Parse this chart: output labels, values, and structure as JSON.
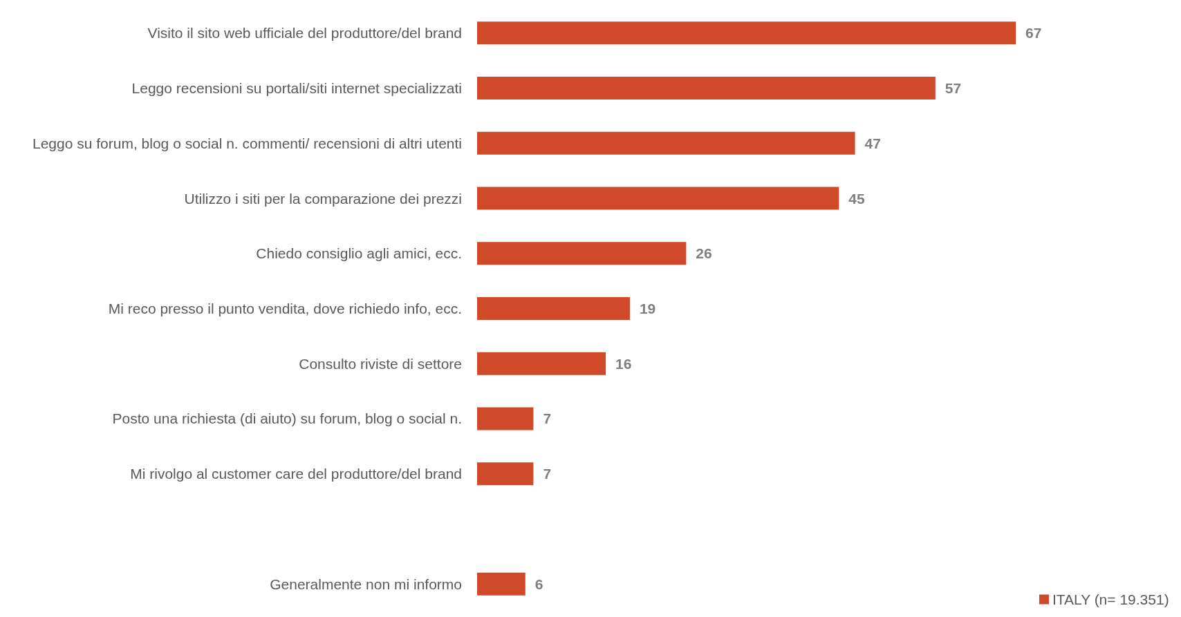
{
  "chart_data": {
    "type": "bar",
    "orientation": "horizontal",
    "categories": [
      "Visito il sito web ufficiale del produttore/del brand",
      "Leggo recensioni su portali/siti internet specializzati",
      "Leggo su forum, blog o social n. commenti/ recensioni di altri utenti",
      "Utilizzo i siti per la comparazione dei prezzi",
      "Chiedo consiglio agli amici, ecc.",
      "Mi reco presso il punto vendita, dove richiedo info, ecc.",
      "Consulto riviste di settore",
      "Posto una richiesta (di aiuto) su forum, blog o social n.",
      "Mi rivolgo al customer care del produttore/del brand",
      null,
      "Generalmente non mi informo"
    ],
    "series": [
      {
        "name": "ITALY (n= 19.351)",
        "color": "#d04a2a",
        "values": [
          67,
          57,
          47,
          45,
          26,
          19,
          16,
          7,
          7,
          null,
          6
        ]
      }
    ],
    "data_labels": true,
    "legend": "bottom right",
    "grid": false
  }
}
